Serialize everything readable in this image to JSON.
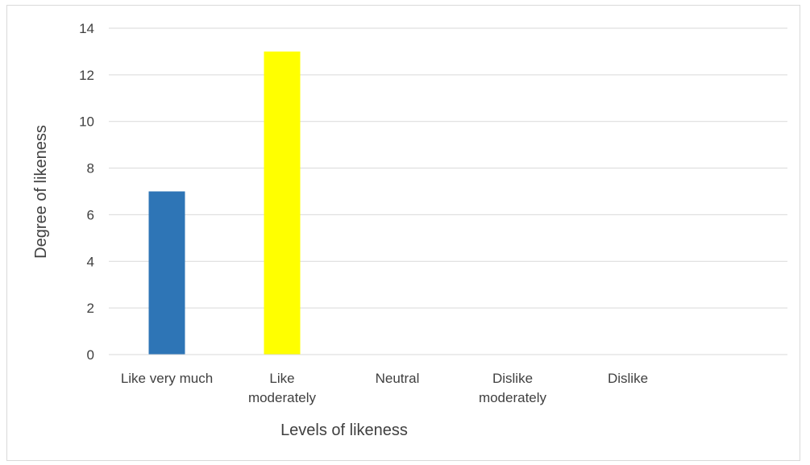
{
  "chart_data": {
    "type": "bar",
    "categories": [
      [
        "Like very much"
      ],
      [
        "Like",
        "moderately"
      ],
      [
        "Neutral"
      ],
      [
        "Dislike",
        "moderately"
      ],
      [
        "Dislike"
      ]
    ],
    "values": [
      7,
      13,
      0,
      0,
      0
    ],
    "bar_colors": [
      "#2e75b6",
      "#ffff00",
      "#2e75b6",
      "#2e75b6",
      "#2e75b6"
    ],
    "xlabel": "Levels of likeness",
    "ylabel": "Degree of likeness",
    "ylim": [
      0,
      14
    ],
    "yticks": [
      "0",
      "2",
      "4",
      "6",
      "8",
      "10",
      "12",
      "14"
    ],
    "grid": true,
    "legend": "none"
  }
}
